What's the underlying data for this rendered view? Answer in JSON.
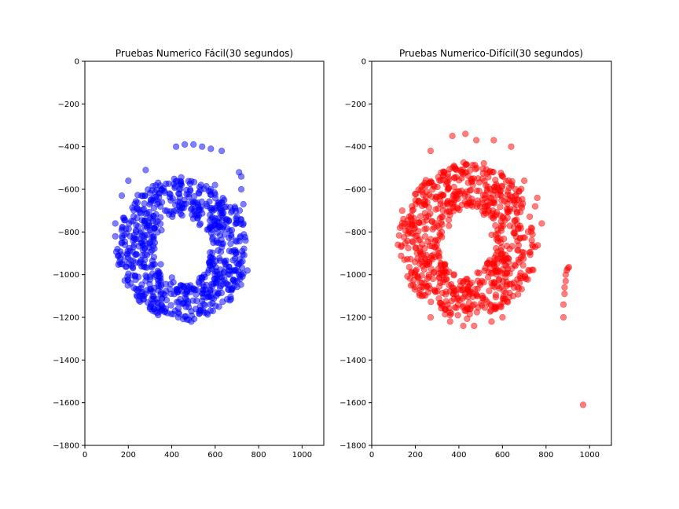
{
  "chart_data": [
    {
      "type": "scatter",
      "title": "Pruebas Numerico Fácil(30 segundos)",
      "xlabel": "",
      "ylabel": "",
      "xlim": [
        0,
        1100
      ],
      "ylim": [
        -1800,
        0
      ],
      "xticks": [
        "0",
        "200",
        "400",
        "600",
        "800",
        "1000"
      ],
      "yticks": [
        "0",
        "−200",
        "−400",
        "−600",
        "−800",
        "−1000",
        "−1200",
        "−1400",
        "−1600",
        "−1800"
      ],
      "grid": false,
      "color": "#0000ff",
      "marker_alpha": 0.5,
      "ring": {
        "cx": 450,
        "cy": -880,
        "outer_rx": 300,
        "outer_ry": 330,
        "inner_rx": 130,
        "inner_ry": 160,
        "count": 720
      },
      "series": [
        {
          "points": [
            [
              420,
              -400
            ],
            [
              460,
              -390
            ],
            [
              500,
              -390
            ],
            [
              540,
              -400
            ],
            [
              580,
              -410
            ],
            [
              630,
              -420
            ],
            [
              720,
              -540
            ],
            [
              710,
              -520
            ],
            [
              720,
              -600
            ],
            [
              730,
              -670
            ],
            [
              730,
              -760
            ],
            [
              740,
              -840
            ],
            [
              710,
              -950
            ],
            [
              710,
              -1000
            ],
            [
              700,
              -1030
            ],
            [
              690,
              -1050
            ],
            [
              140,
              -760
            ],
            [
              140,
              -820
            ],
            [
              150,
              -880
            ],
            [
              160,
              -940
            ],
            [
              170,
              -630
            ],
            [
              200,
              -560
            ],
            [
              280,
              -510
            ],
            [
              490,
              -1220
            ],
            [
              470,
              -1210
            ],
            [
              430,
              -1200
            ],
            [
              380,
              -1180
            ],
            [
              300,
              -1160
            ]
          ]
        }
      ]
    },
    {
      "type": "scatter",
      "title": "Pruebas Numerico-Difícil(30 segundos)",
      "xlabel": "",
      "ylabel": "",
      "xlim": [
        0,
        1100
      ],
      "ylim": [
        -1800,
        0
      ],
      "xticks": [
        "0",
        "200",
        "400",
        "600",
        "800",
        "1000"
      ],
      "yticks": [
        "0",
        "−200",
        "−400",
        "−600",
        "−800",
        "−1000",
        "−1200",
        "−1400",
        "−1600",
        "−1800"
      ],
      "grid": false,
      "color": "#ff0000",
      "marker_alpha": 0.5,
      "ring": {
        "cx": 445,
        "cy": -840,
        "outer_rx": 310,
        "outer_ry": 360,
        "inner_rx": 120,
        "inner_ry": 160,
        "count": 760
      },
      "series": [
        {
          "points": [
            [
              370,
              -350
            ],
            [
              430,
              -340
            ],
            [
              270,
              -420
            ],
            [
              480,
              -370
            ],
            [
              560,
              -370
            ],
            [
              640,
              -400
            ],
            [
              700,
              -560
            ],
            [
              760,
              -640
            ],
            [
              750,
              -680
            ],
            [
              780,
              -760
            ],
            [
              750,
              -870
            ],
            [
              130,
              -780
            ],
            [
              140,
              -700
            ],
            [
              120,
              -860
            ],
            [
              150,
              -930
            ],
            [
              180,
              -1050
            ],
            [
              270,
              -1200
            ],
            [
              360,
              -1220
            ],
            [
              420,
              -1240
            ],
            [
              470,
              -1240
            ],
            [
              550,
              -1220
            ],
            [
              600,
              -1200
            ],
            [
              880,
              -1200
            ],
            [
              880,
              -1140
            ],
            [
              885,
              -1090
            ],
            [
              885,
              -1060
            ],
            [
              890,
              -1030
            ],
            [
              890,
              -1000
            ],
            [
              895,
              -980
            ],
            [
              900,
              -970
            ],
            [
              905,
              -965
            ],
            [
              970,
              -1610
            ]
          ]
        }
      ]
    }
  ]
}
